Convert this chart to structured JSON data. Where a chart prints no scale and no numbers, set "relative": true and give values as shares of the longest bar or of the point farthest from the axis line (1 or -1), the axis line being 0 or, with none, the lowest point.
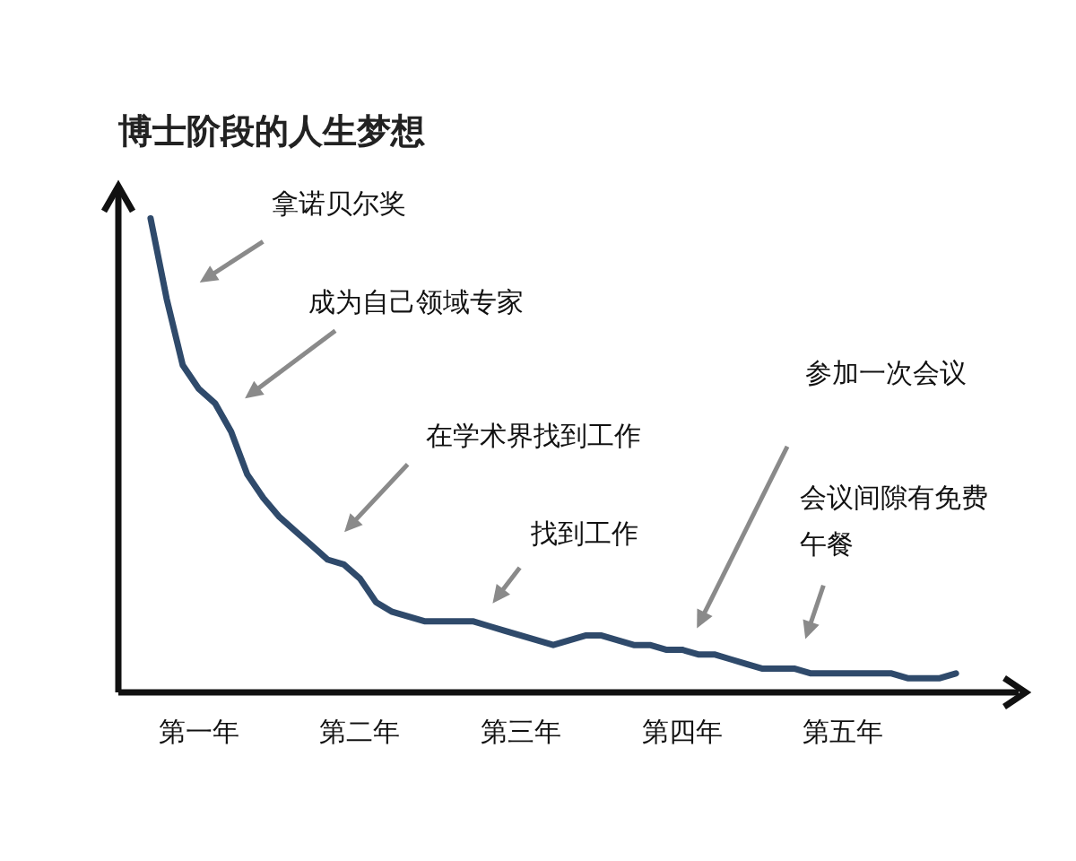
{
  "chart_data": {
    "type": "line",
    "title": "博士阶段的人生梦想",
    "relative": true,
    "categories": [
      null,
      null,
      null,
      null,
      null,
      "第一年",
      null,
      null,
      null,
      null,
      null,
      null,
      null,
      null,
      null,
      "第二年",
      null,
      null,
      null,
      null,
      null,
      null,
      null,
      null,
      null,
      "第三年",
      null,
      null,
      null,
      null,
      null,
      null,
      null,
      null,
      null,
      "第四年",
      null,
      null,
      null,
      null,
      null,
      null,
      null,
      null,
      null,
      "第五年",
      null,
      null,
      null,
      null,
      null,
      null,
      null,
      null,
      null,
      null
    ],
    "series": [
      {
        "color": "#2f4a6b",
        "values": [
          null,
          null,
          1.0,
          0.83,
          0.69,
          0.64,
          0.61,
          0.55,
          0.46,
          0.41,
          0.37,
          0.34,
          0.31,
          0.28,
          0.27,
          0.24,
          0.19,
          0.17,
          0.16,
          0.15,
          0.15,
          0.15,
          0.15,
          0.14,
          0.13,
          0.12,
          0.11,
          0.1,
          0.11,
          0.12,
          0.12,
          0.11,
          0.1,
          0.1,
          0.09,
          0.09,
          0.08,
          0.08,
          0.07,
          0.06,
          0.05,
          0.05,
          0.05,
          0.04,
          0.04,
          0.04,
          0.04,
          0.04,
          0.04,
          0.03,
          0.03,
          0.03,
          0.04,
          null,
          null,
          null
        ]
      }
    ],
    "annotations": [
      "拿诺贝尔奖",
      "成为自己领域专家",
      "在学术界找到工作",
      "找到工作",
      "参加一次会议",
      "会议间隙有免费午餐"
    ],
    "grid": false,
    "legend": false,
    "marker": "none",
    "line_style": "solid"
  }
}
